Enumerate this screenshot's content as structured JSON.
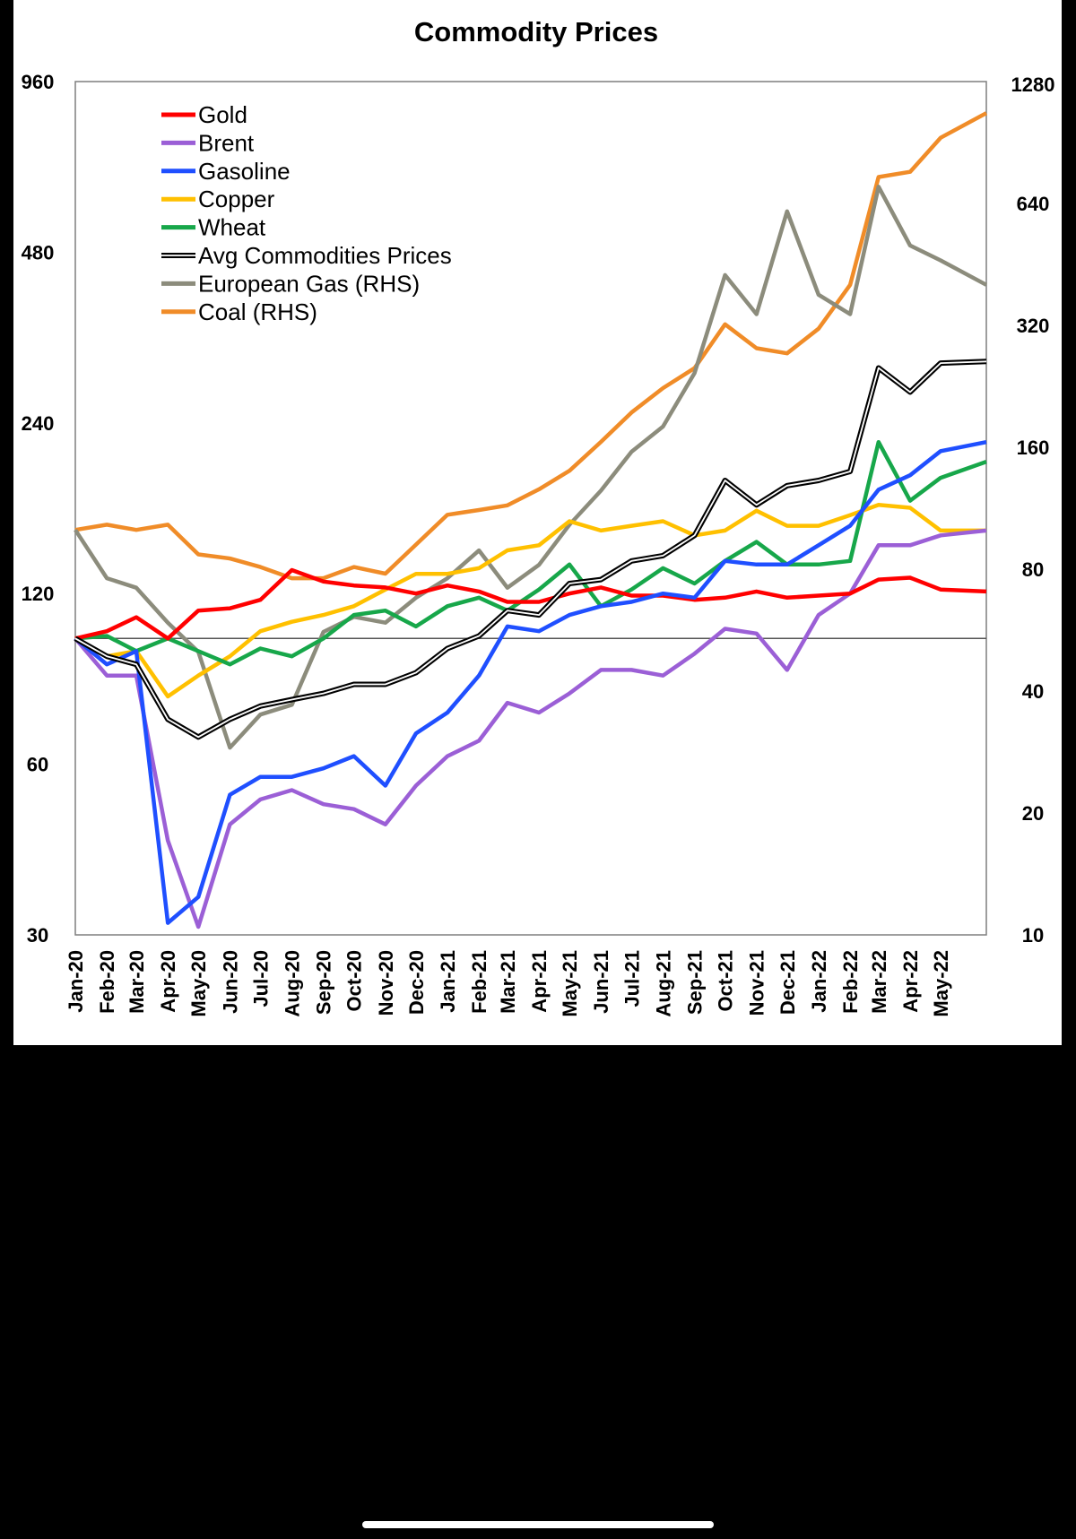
{
  "chart_data": {
    "type": "line",
    "title": "Commodity Prices",
    "y_left": {
      "scale": "log2",
      "range": [
        30,
        960
      ],
      "ticks": [
        30,
        60,
        120,
        240,
        480,
        960
      ],
      "tick_labels": [
        "30",
        "60",
        "120",
        "240",
        "480",
        "960"
      ]
    },
    "y_right": {
      "scale": "log2",
      "range": [
        10,
        1280
      ],
      "ticks": [
        10,
        20,
        40,
        80,
        160,
        320,
        640,
        1280
      ],
      "tick_labels": [
        "10",
        "20",
        "40",
        "80",
        "160",
        "320",
        "640",
        "1280"
      ]
    },
    "reference_line": 100,
    "x_range": [
      "2020-01-01",
      "2022-06-15"
    ],
    "x_tick_labels": [
      "Jan-20",
      "Feb-20",
      "Mar-20",
      "Apr-20",
      "May-20",
      "Jun-20",
      "Jul-20",
      "Aug-20",
      "Sep-20",
      "Oct-20",
      "Nov-20",
      "Dec-20",
      "Jan-21",
      "Feb-21",
      "Mar-21",
      "Apr-21",
      "May-21",
      "Jun-21",
      "Jul-21",
      "Aug-21",
      "Sep-21",
      "Oct-21",
      "Nov-21",
      "Dec-21",
      "Jan-22",
      "Feb-22",
      "Mar-22",
      "Apr-22",
      "May-22"
    ],
    "x": [
      "2020-01-01",
      "2020-02-01",
      "2020-03-01",
      "2020-04-01",
      "2020-05-01",
      "2020-06-01",
      "2020-07-01",
      "2020-08-01",
      "2020-09-01",
      "2020-10-01",
      "2020-11-01",
      "2020-12-01",
      "2021-01-01",
      "2021-02-01",
      "2021-03-01",
      "2021-04-01",
      "2021-05-01",
      "2021-06-01",
      "2021-07-01",
      "2021-08-01",
      "2021-09-01",
      "2021-10-01",
      "2021-11-01",
      "2021-12-01",
      "2022-01-01",
      "2022-02-01",
      "2022-03-01",
      "2022-04-01",
      "2022-05-01",
      "2022-06-15"
    ],
    "legend_position": "top-left",
    "grid": false,
    "series": [
      {
        "name": "Gold",
        "axis": "left",
        "color": "#ff0000",
        "values": [
          100,
          103,
          109,
          100,
          112,
          113,
          117,
          132,
          126,
          124,
          123,
          120,
          124,
          121,
          116,
          116,
          120,
          123,
          119,
          119,
          117,
          118,
          121,
          118,
          119,
          120,
          127,
          128,
          122,
          121
        ]
      },
      {
        "name": "Brent",
        "axis": "left",
        "color": "#9b5fd6",
        "values": [
          100,
          86,
          86,
          44,
          31,
          47,
          52,
          54,
          51,
          50,
          47,
          55,
          62,
          66,
          77,
          74,
          80,
          88,
          88,
          86,
          94,
          104,
          102,
          88,
          110,
          120,
          146,
          146,
          152,
          155
        ]
      },
      {
        "name": "Gasoline",
        "axis": "left",
        "color": "#1f4fff",
        "values": [
          100,
          90,
          95,
          31.5,
          35,
          53,
          57,
          57,
          59,
          62,
          55,
          68,
          74,
          86,
          105,
          103,
          110,
          114,
          116,
          120,
          118,
          137,
          135,
          135,
          146,
          158,
          183,
          194,
          214,
          222
        ]
      },
      {
        "name": "Copper",
        "axis": "left",
        "color": "#ffc000",
        "values": [
          100,
          93,
          95,
          79,
          86,
          93,
          103,
          107,
          110,
          114,
          122,
          130,
          130,
          133,
          143,
          146,
          161,
          155,
          158,
          161,
          152,
          155,
          168,
          158,
          158,
          165,
          172,
          170,
          155,
          155
        ]
      },
      {
        "name": "Wheat",
        "axis": "left",
        "color": "#17a74a",
        "values": [
          100,
          101,
          95,
          100,
          95,
          90,
          96,
          93,
          100,
          110,
          112,
          105,
          114,
          118,
          112,
          122,
          135,
          114,
          122,
          133,
          125,
          137,
          148,
          135,
          135,
          137,
          222,
          175,
          192,
          205
        ]
      },
      {
        "name": "Avg Commodities Prices",
        "axis": "left",
        "color": "#000000",
        "values": [
          100,
          93,
          90,
          72,
          67,
          72,
          76,
          78,
          80,
          83,
          83,
          87,
          96,
          101,
          112,
          110,
          125,
          127,
          137,
          140,
          152,
          190,
          172,
          186,
          190,
          197,
          300,
          272,
          306,
          308
        ]
      },
      {
        "name": "European Gas (RHS)",
        "axis": "right",
        "color": "#8c8c7c",
        "values": [
          100,
          76,
          72,
          59,
          50,
          29,
          35,
          37,
          56,
          61,
          59,
          68,
          76,
          89,
          72,
          82,
          103,
          125,
          156,
          180,
          244,
          426,
          341,
          612,
          381,
          341,
          704,
          504,
          463,
          403
        ]
      },
      {
        "name": "Coal (RHS)",
        "axis": "right",
        "color": "#f08c28",
        "values": [
          100,
          103,
          100,
          103,
          87,
          85,
          81,
          76,
          76,
          81,
          78,
          92,
          109,
          112,
          115,
          126,
          140,
          165,
          195,
          224,
          251,
          322,
          281,
          273,
          314,
          403,
          744,
          766,
          930,
          1070
        ]
      }
    ]
  }
}
